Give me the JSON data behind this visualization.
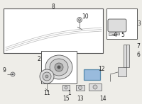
{
  "bg_color": "#eeede8",
  "line_color": "#999999",
  "dark_line": "#555555",
  "highlight_color": "#99bbdd",
  "box_bg": "#ffffff",
  "gray_part": "#cccccc",
  "light_gray": "#dddddd"
}
